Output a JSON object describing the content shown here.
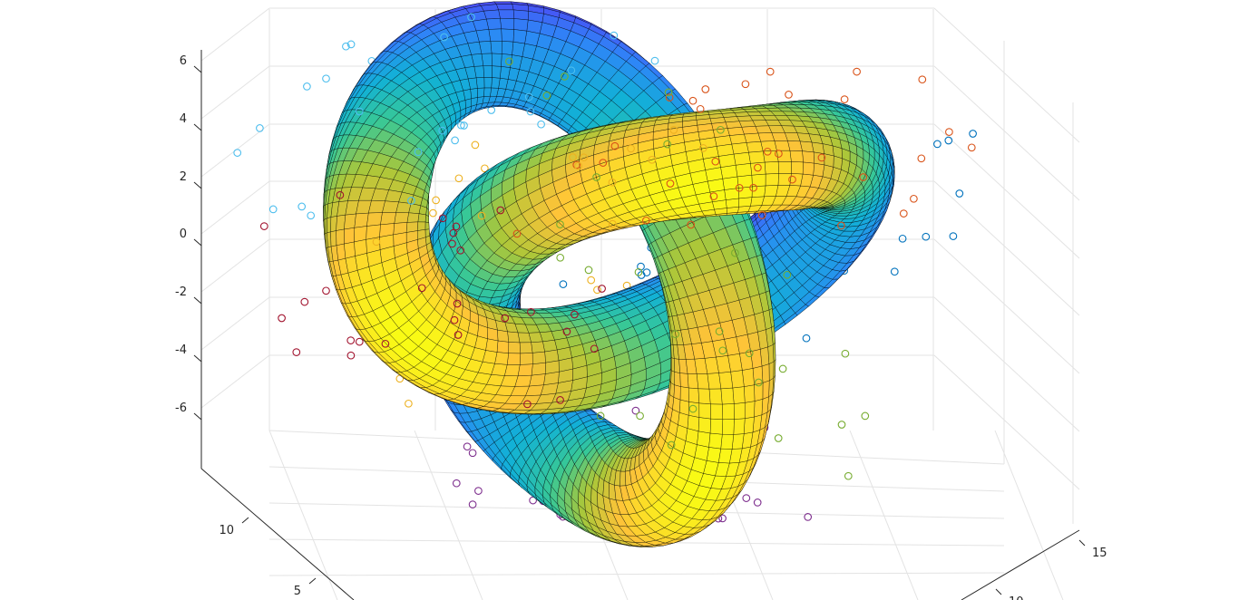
{
  "chart_data": {
    "type": "surface3d",
    "title": "",
    "xlabel": "",
    "ylabel": "",
    "zlabel": "",
    "grid": true,
    "legend": "none",
    "colormap": "parula",
    "edge_color": "#000000",
    "z_ticks": [
      "6",
      "4",
      "2",
      "0",
      "-2",
      "-4",
      "-6"
    ],
    "y_ticks": [
      "10",
      "5"
    ],
    "x_ticks": [
      "15",
      "10"
    ],
    "z_range": [
      -7,
      7
    ],
    "y_range": [
      0,
      13
    ],
    "x_range": [
      0,
      16
    ],
    "surface": {
      "kind": "trefoil knot tube",
      "center": [
        7.5,
        7.5,
        0
      ],
      "tube_radius": 1.6
    },
    "scatter": {
      "marker": "o",
      "series_colors": [
        "#0072BD",
        "#D95319",
        "#EDB120",
        "#7E2F8E",
        "#77AC30",
        "#4DBEEE",
        "#A2142F"
      ],
      "points_per_series": 35
    }
  }
}
